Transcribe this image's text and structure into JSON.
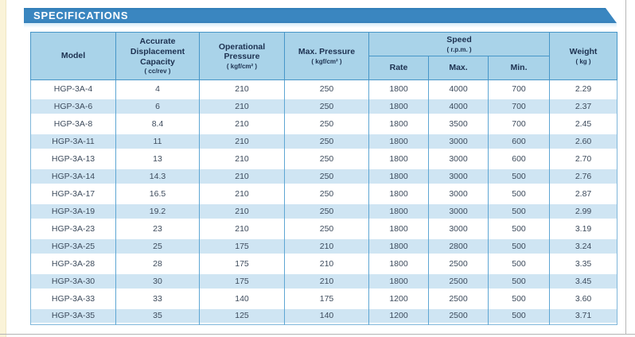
{
  "banner": {
    "title": "SPECIFICATIONS",
    "color": "#3a86c0",
    "text_color": "#ffffff"
  },
  "colors": {
    "header_bg": "#a9d3e9",
    "header_border": "#4796c8",
    "alt_row_bg": "#cfe5f3",
    "divider_blue": "#5ea6d3",
    "header_text": "#1d3150",
    "cell_text": "#3d4b5c",
    "left_strip_cream": "#faf3d8"
  },
  "table": {
    "headers": {
      "model": {
        "label": "Model"
      },
      "capacity": {
        "label": "Accurate Displacement Capacity",
        "unit": "( cc/rev )"
      },
      "operational_pressure": {
        "label": "Operational Pressure",
        "unit": "( kgf/cm² )"
      },
      "max_pressure": {
        "label": "Max. Pressure",
        "unit": "( kgf/cm² )"
      },
      "speed": {
        "label": "Speed",
        "unit": "( r.p.m. )",
        "sub": {
          "rate": "Rate",
          "max": "Max.",
          "min": "Min."
        }
      },
      "weight": {
        "label": "Weight",
        "unit": "( kg )"
      }
    },
    "column_keys": [
      "model",
      "capacity",
      "operational_pressure",
      "max_pressure",
      "speed_rate",
      "speed_max",
      "speed_min",
      "weight"
    ],
    "rows": [
      [
        "HGP-3A-4",
        "4",
        "210",
        "250",
        "1800",
        "4000",
        "700",
        "2.29"
      ],
      [
        "HGP-3A-6",
        "6",
        "210",
        "250",
        "1800",
        "4000",
        "700",
        "2.37"
      ],
      [
        "HGP-3A-8",
        "8.4",
        "210",
        "250",
        "1800",
        "3500",
        "700",
        "2.45"
      ],
      [
        "HGP-3A-11",
        "11",
        "210",
        "250",
        "1800",
        "3000",
        "600",
        "2.60"
      ],
      [
        "HGP-3A-13",
        "13",
        "210",
        "250",
        "1800",
        "3000",
        "600",
        "2.70"
      ],
      [
        "HGP-3A-14",
        "14.3",
        "210",
        "250",
        "1800",
        "3000",
        "500",
        "2.76"
      ],
      [
        "HGP-3A-17",
        "16.5",
        "210",
        "250",
        "1800",
        "3000",
        "500",
        "2.87"
      ],
      [
        "HGP-3A-19",
        "19.2",
        "210",
        "250",
        "1800",
        "3000",
        "500",
        "2.99"
      ],
      [
        "HGP-3A-23",
        "23",
        "210",
        "250",
        "1800",
        "3000",
        "500",
        "3.19"
      ],
      [
        "HGP-3A-25",
        "25",
        "175",
        "210",
        "1800",
        "2800",
        "500",
        "3.24"
      ],
      [
        "HGP-3A-28",
        "28",
        "175",
        "210",
        "1800",
        "2500",
        "500",
        "3.35"
      ],
      [
        "HGP-3A-30",
        "30",
        "175",
        "210",
        "1800",
        "2500",
        "500",
        "3.45"
      ],
      [
        "HGP-3A-33",
        "33",
        "140",
        "175",
        "1200",
        "2500",
        "500",
        "3.60"
      ],
      [
        "HGP-3A-35",
        "35",
        "125",
        "140",
        "1200",
        "2500",
        "500",
        "3.71"
      ]
    ]
  }
}
